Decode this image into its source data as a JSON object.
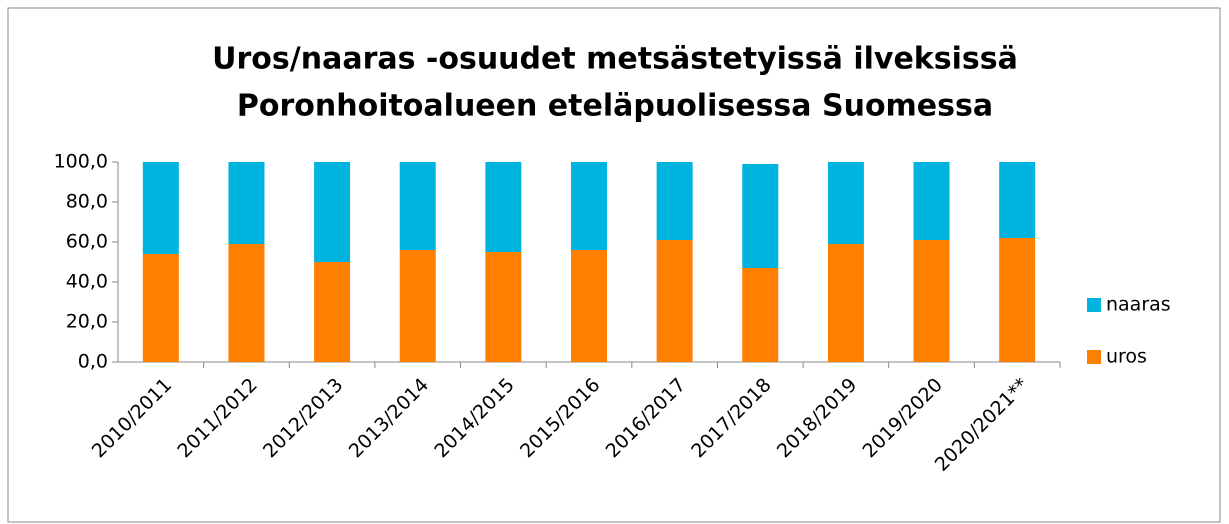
{
  "chart_data": {
    "type": "stacked_bar",
    "title": "Uros/naaras -osuudet metsästetyissä ilveksissä",
    "subtitle": "Poronhoitoalueen eteläpuolisessa Suomessa",
    "categories": [
      "2010/2011",
      "2011/2012",
      "2012/2013",
      "2013/2014",
      "2014/2015",
      "2015/2016",
      "2016/2017",
      "2017/2018",
      "2018/2019",
      "2019/2020",
      "2020/2021**"
    ],
    "series": [
      {
        "name": "uros",
        "color": "#ff8000",
        "values": [
          54,
          59,
          50,
          56,
          55,
          56,
          61,
          47,
          59,
          61,
          62
        ]
      },
      {
        "name": "naaras",
        "color": "#00b4e0",
        "values": [
          46,
          41,
          50,
          44,
          45,
          44,
          39,
          52,
          41,
          39,
          38
        ]
      }
    ],
    "ylim": [
      0,
      100
    ],
    "yticks": [
      {
        "value": 0,
        "label": "0,0"
      },
      {
        "value": 20,
        "label": "20,0"
      },
      {
        "value": 40,
        "label": "40,0"
      },
      {
        "value": 60,
        "label": "60,0"
      },
      {
        "value": 80,
        "label": "80,0"
      },
      {
        "value": 100,
        "label": "100,0"
      }
    ],
    "legend": "right"
  }
}
